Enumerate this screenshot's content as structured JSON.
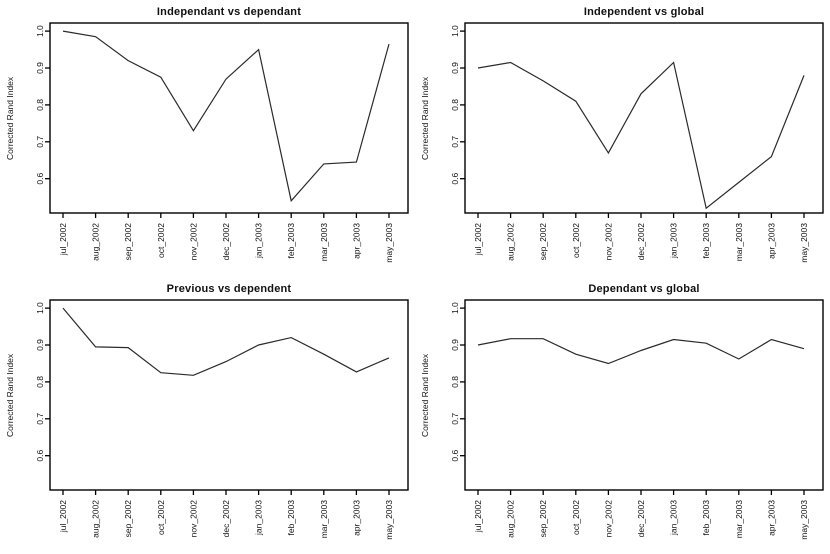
{
  "page": {
    "background": "#ffffff",
    "description": "2x2 grid of base-R style line plots comparing clustering results by Corrected Rand Index per month"
  },
  "axis": {
    "ylabel": "Corrected Rand Index",
    "ytick_labels": [
      "0.6",
      "0.7",
      "0.8",
      "0.9",
      "1.0"
    ],
    "line_color": "#2a2a2a",
    "axis_color": "#000000",
    "text_color": "#111111"
  },
  "chart_data": [
    {
      "type": "line",
      "title": "Independant vs dependant",
      "xlabel": "",
      "ylabel": "Corrected Rand Index",
      "categories": [
        "jul_2002",
        "aug_2002",
        "sep_2002",
        "oct_2002",
        "nov_2002",
        "dec_2002",
        "jan_2003",
        "feb_2003",
        "mar_2003",
        "apr_2003",
        "may_2003"
      ],
      "values": [
        1.0,
        0.985,
        0.92,
        0.875,
        0.73,
        0.87,
        0.95,
        0.54,
        0.64,
        0.645,
        0.965
      ],
      "yticks": [
        0.6,
        0.7,
        0.8,
        0.9,
        1.0
      ],
      "ylim": [
        0.507,
        1.022
      ],
      "grid": false,
      "legend": null
    },
    {
      "type": "line",
      "title": "Independent vs global",
      "xlabel": "",
      "ylabel": "Corrected Rand Index",
      "categories": [
        "jul_2002",
        "aug_2002",
        "sep_2002",
        "oct_2002",
        "nov_2002",
        "dec_2002",
        "jan_2003",
        "feb_2003",
        "mar_2003",
        "apr_2003",
        "may_2003"
      ],
      "values": [
        0.9,
        0.915,
        0.865,
        0.81,
        0.67,
        0.83,
        0.915,
        0.52,
        0.59,
        0.66,
        0.88
      ],
      "yticks": [
        0.6,
        0.7,
        0.8,
        0.9,
        1.0
      ],
      "ylim": [
        0.507,
        1.022
      ],
      "grid": false,
      "legend": null
    },
    {
      "type": "line",
      "title": "Previous vs dependent",
      "xlabel": "",
      "ylabel": "Corrected Rand Index",
      "categories": [
        "jul_2002",
        "aug_2002",
        "sep_2002",
        "oct_2002",
        "nov_2002",
        "dec_2002",
        "jan_2003",
        "feb_2003",
        "mar_2003",
        "apr_2003",
        "may_2003"
      ],
      "values": [
        1.0,
        0.895,
        0.893,
        0.825,
        0.818,
        0.855,
        0.9,
        0.92,
        0.875,
        0.827,
        0.865
      ],
      "yticks": [
        0.6,
        0.7,
        0.8,
        0.9,
        1.0
      ],
      "ylim": [
        0.507,
        1.022
      ],
      "grid": false,
      "legend": null
    },
    {
      "type": "line",
      "title": "Dependant vs global",
      "xlabel": "",
      "ylabel": "Corrected Rand Index",
      "categories": [
        "jul_2002",
        "aug_2002",
        "sep_2002",
        "oct_2002",
        "nov_2002",
        "dec_2002",
        "jan_2003",
        "feb_2003",
        "mar_2003",
        "apr_2003",
        "may_2003"
      ],
      "values": [
        0.9,
        0.917,
        0.917,
        0.875,
        0.85,
        0.885,
        0.915,
        0.905,
        0.862,
        0.915,
        0.89
      ],
      "yticks": [
        0.6,
        0.7,
        0.8,
        0.9,
        1.0
      ],
      "ylim": [
        0.507,
        1.022
      ],
      "grid": false,
      "legend": null
    }
  ]
}
